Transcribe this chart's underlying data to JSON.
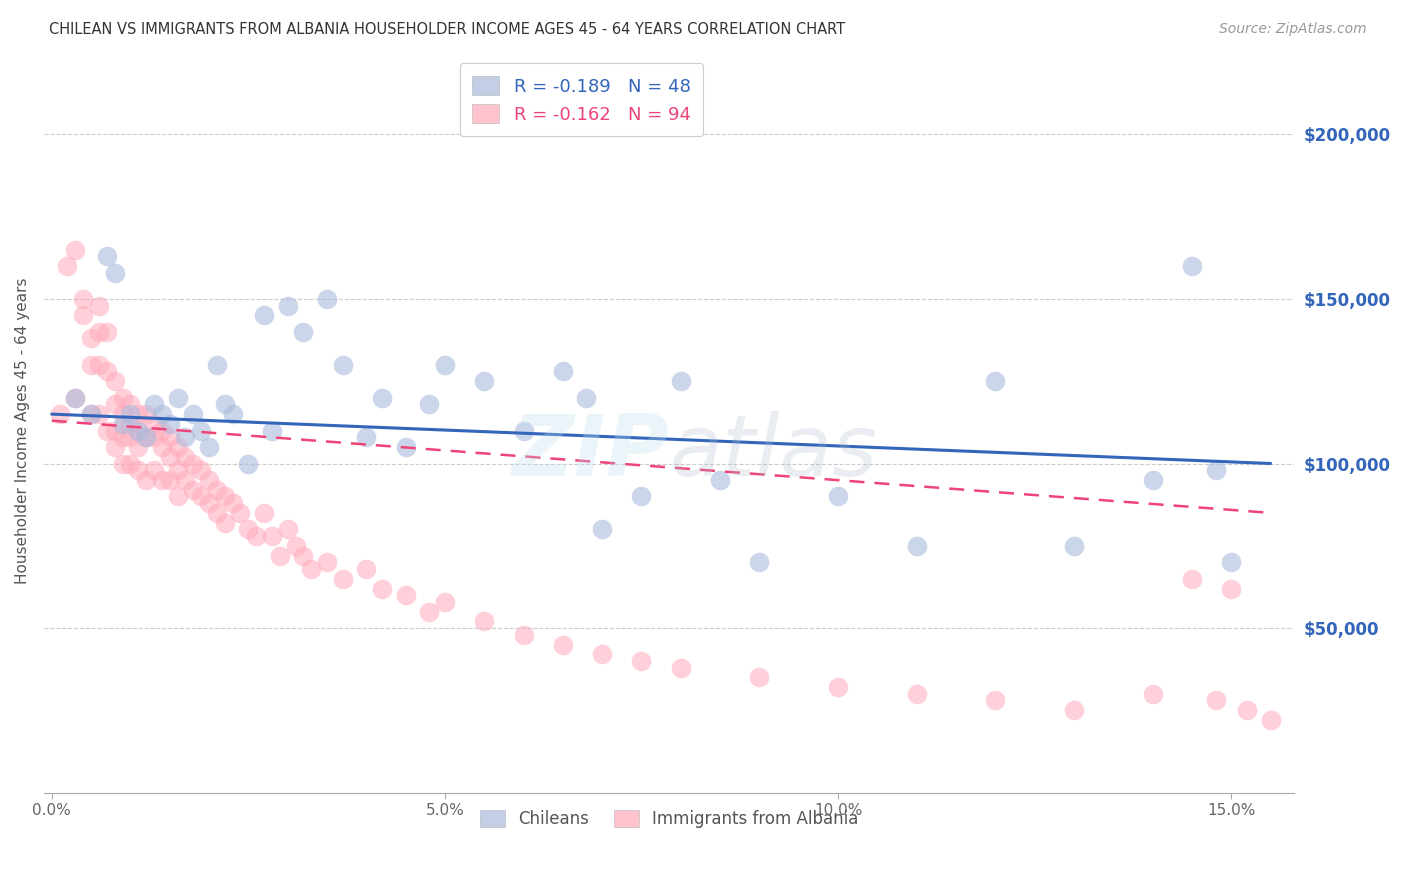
{
  "title": "CHILEAN VS IMMIGRANTS FROM ALBANIA HOUSEHOLDER INCOME AGES 45 - 64 YEARS CORRELATION CHART",
  "source": "Source: ZipAtlas.com",
  "ylabel": "Householder Income Ages 45 - 64 years",
  "xlabel_ticks": [
    "0.0%",
    "5.0%",
    "10.0%",
    "15.0%"
  ],
  "xlabel_vals": [
    0.0,
    0.05,
    0.1,
    0.15
  ],
  "xlim": [
    -0.001,
    0.158
  ],
  "ylim": [
    0,
    220000
  ],
  "ytick_vals": [
    50000,
    100000,
    150000,
    200000
  ],
  "ytick_labels": [
    "$50,000",
    "$100,000",
    "$150,000",
    "$200,000"
  ],
  "grid_color": "#cccccc",
  "background_color": "#ffffff",
  "blue_color": "#aabbdd",
  "pink_color": "#ffaabb",
  "blue_line_color": "#3366bb",
  "pink_line_color": "#ee4477",
  "legend_blue_label": "R = -0.189   N = 48",
  "legend_pink_label": "R = -0.162   N = 94",
  "chileans_label": "Chileans",
  "immigrants_label": "Immigrants from Albania",
  "blue_line_x0": 0.0,
  "blue_line_y0": 115000,
  "blue_line_x1": 0.155,
  "blue_line_y1": 100000,
  "pink_line_x0": 0.0,
  "pink_line_y0": 113000,
  "pink_line_x1": 0.155,
  "pink_line_y1": 85000,
  "blue_scatter_x": [
    0.003,
    0.005,
    0.007,
    0.008,
    0.009,
    0.01,
    0.011,
    0.012,
    0.013,
    0.014,
    0.015,
    0.016,
    0.017,
    0.018,
    0.019,
    0.02,
    0.021,
    0.022,
    0.023,
    0.025,
    0.027,
    0.028,
    0.03,
    0.032,
    0.035,
    0.037,
    0.04,
    0.042,
    0.045,
    0.048,
    0.05,
    0.055,
    0.06,
    0.065,
    0.068,
    0.07,
    0.075,
    0.08,
    0.085,
    0.09,
    0.1,
    0.11,
    0.12,
    0.13,
    0.14,
    0.145,
    0.148,
    0.15
  ],
  "blue_scatter_y": [
    120000,
    115000,
    163000,
    158000,
    112000,
    115000,
    110000,
    108000,
    118000,
    115000,
    112000,
    120000,
    108000,
    115000,
    110000,
    105000,
    130000,
    118000,
    115000,
    100000,
    145000,
    110000,
    148000,
    140000,
    150000,
    130000,
    108000,
    120000,
    105000,
    118000,
    130000,
    125000,
    110000,
    128000,
    120000,
    80000,
    90000,
    125000,
    95000,
    70000,
    90000,
    75000,
    125000,
    75000,
    95000,
    160000,
    98000,
    70000
  ],
  "pink_scatter_x": [
    0.001,
    0.002,
    0.003,
    0.003,
    0.004,
    0.004,
    0.005,
    0.005,
    0.005,
    0.006,
    0.006,
    0.006,
    0.006,
    0.007,
    0.007,
    0.007,
    0.008,
    0.008,
    0.008,
    0.008,
    0.009,
    0.009,
    0.009,
    0.009,
    0.01,
    0.01,
    0.01,
    0.01,
    0.011,
    0.011,
    0.011,
    0.011,
    0.012,
    0.012,
    0.012,
    0.013,
    0.013,
    0.013,
    0.014,
    0.014,
    0.014,
    0.015,
    0.015,
    0.015,
    0.016,
    0.016,
    0.016,
    0.017,
    0.017,
    0.018,
    0.018,
    0.019,
    0.019,
    0.02,
    0.02,
    0.021,
    0.021,
    0.022,
    0.022,
    0.023,
    0.024,
    0.025,
    0.026,
    0.027,
    0.028,
    0.029,
    0.03,
    0.031,
    0.032,
    0.033,
    0.035,
    0.037,
    0.04,
    0.042,
    0.045,
    0.048,
    0.05,
    0.055,
    0.06,
    0.065,
    0.07,
    0.075,
    0.08,
    0.09,
    0.1,
    0.11,
    0.12,
    0.13,
    0.14,
    0.145,
    0.148,
    0.15,
    0.152,
    0.155
  ],
  "pink_scatter_y": [
    115000,
    160000,
    165000,
    120000,
    145000,
    150000,
    138000,
    130000,
    115000,
    148000,
    140000,
    130000,
    115000,
    140000,
    128000,
    110000,
    125000,
    118000,
    110000,
    105000,
    120000,
    115000,
    108000,
    100000,
    118000,
    112000,
    108000,
    100000,
    115000,
    110000,
    105000,
    98000,
    115000,
    108000,
    95000,
    112000,
    108000,
    98000,
    110000,
    105000,
    95000,
    108000,
    102000,
    95000,
    105000,
    98000,
    90000,
    102000,
    95000,
    100000,
    92000,
    98000,
    90000,
    95000,
    88000,
    92000,
    85000,
    90000,
    82000,
    88000,
    85000,
    80000,
    78000,
    85000,
    78000,
    72000,
    80000,
    75000,
    72000,
    68000,
    70000,
    65000,
    68000,
    62000,
    60000,
    55000,
    58000,
    52000,
    48000,
    45000,
    42000,
    40000,
    38000,
    35000,
    32000,
    30000,
    28000,
    25000,
    30000,
    65000,
    28000,
    62000,
    25000,
    22000
  ]
}
